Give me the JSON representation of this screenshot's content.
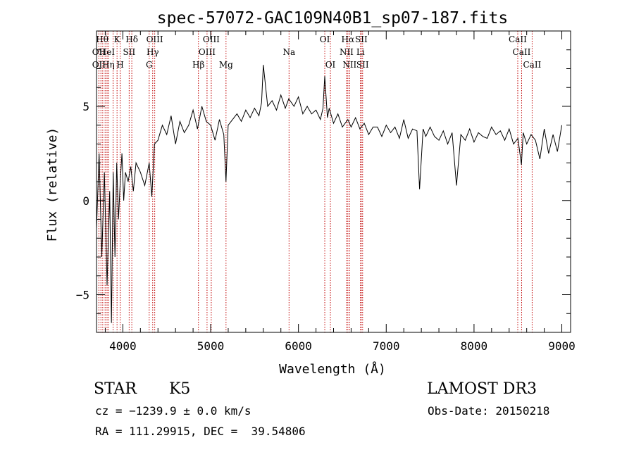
{
  "chart_data": {
    "type": "line",
    "title": "spec-57072-GAC109N40B1_sp07-187.fits",
    "xlabel": "Wavelength (Å)",
    "ylabel": "Flux (relative)",
    "xlim": [
      3700,
      9100
    ],
    "ylim": [
      -7,
      9
    ],
    "x_ticks": [
      4000,
      5000,
      6000,
      7000,
      8000,
      9000
    ],
    "y_ticks": [
      -5,
      0,
      5
    ],
    "x_tick_labels": [
      "4000",
      "5000",
      "6000",
      "7000",
      "8000",
      "9000"
    ],
    "y_tick_labels": [
      "−5",
      "0",
      "5"
    ],
    "grid": false,
    "series": [
      {
        "color": "#000000",
        "x": [
          3700,
          3730,
          3760,
          3790,
          3820,
          3850,
          3870,
          3890,
          3910,
          3930,
          3950,
          3970,
          3990,
          4010,
          4030,
          4060,
          4090,
          4120,
          4150,
          4200,
          4250,
          4300,
          4330,
          4360,
          4400,
          4450,
          4500,
          4550,
          4600,
          4650,
          4700,
          4750,
          4800,
          4850,
          4900,
          4950,
          5000,
          5050,
          5100,
          5150,
          5175,
          5200,
          5250,
          5300,
          5350,
          5400,
          5450,
          5500,
          5550,
          5580,
          5600,
          5650,
          5700,
          5750,
          5800,
          5850,
          5890,
          5950,
          6000,
          6050,
          6100,
          6150,
          6200,
          6250,
          6280,
          6300,
          6330,
          6350,
          6400,
          6450,
          6500,
          6563,
          6600,
          6650,
          6700,
          6750,
          6800,
          6850,
          6900,
          6950,
          7000,
          7050,
          7100,
          7150,
          7200,
          7250,
          7300,
          7350,
          7380,
          7420,
          7450,
          7500,
          7550,
          7600,
          7650,
          7700,
          7750,
          7800,
          7850,
          7900,
          7950,
          8000,
          8050,
          8100,
          8150,
          8200,
          8250,
          8300,
          8350,
          8400,
          8450,
          8500,
          8540,
          8560,
          8600,
          8650,
          8700,
          8750,
          8800,
          8850,
          8900,
          8950,
          9000
        ],
        "y": [
          -1.5,
          2.5,
          -3.0,
          1.5,
          -4.5,
          0.5,
          -6.5,
          1.5,
          -3.0,
          2.0,
          -1.0,
          1.0,
          2.5,
          0.0,
          1.5,
          1.0,
          1.8,
          0.5,
          2.0,
          1.5,
          0.8,
          2.0,
          0.2,
          3.0,
          3.2,
          4.0,
          3.5,
          4.5,
          3.0,
          4.2,
          3.6,
          4.0,
          4.8,
          3.8,
          5.0,
          4.2,
          4.0,
          3.2,
          4.3,
          3.5,
          1.0,
          4.0,
          4.3,
          4.6,
          4.2,
          4.8,
          4.4,
          4.9,
          4.5,
          5.2,
          7.2,
          5.0,
          5.3,
          4.8,
          5.6,
          4.9,
          5.4,
          5.0,
          5.5,
          4.6,
          5.0,
          4.6,
          4.8,
          4.3,
          4.9,
          6.6,
          4.4,
          4.9,
          4.1,
          4.6,
          3.9,
          4.3,
          3.9,
          4.4,
          3.8,
          4.1,
          3.5,
          3.9,
          3.9,
          3.4,
          4.0,
          3.6,
          3.9,
          3.3,
          4.3,
          3.3,
          3.8,
          3.7,
          0.6,
          3.8,
          3.4,
          3.9,
          3.4,
          3.2,
          3.7,
          3.0,
          3.6,
          0.8,
          3.5,
          3.2,
          3.8,
          3.1,
          3.6,
          3.4,
          3.3,
          3.9,
          3.5,
          3.7,
          3.2,
          3.8,
          3.0,
          3.3,
          1.9,
          3.6,
          3.0,
          3.5,
          3.2,
          2.2,
          3.8,
          2.5,
          3.5,
          2.6,
          4.0
        ]
      }
    ],
    "lines": {
      "wavelengths": [
        3727,
        3750,
        3771,
        3798,
        3820,
        3835,
        3889,
        3934,
        3970,
        4072,
        4102,
        4300,
        4340,
        4363,
        4861,
        4959,
        5007,
        5175,
        5893,
        6300,
        6364,
        6548,
        6563,
        6583,
        6707,
        6716,
        6731,
        8498,
        8542,
        8662
      ],
      "labels": [
        {
          "text": "Hθ",
          "wl": 3765,
          "row": 1
        },
        {
          "text": "K",
          "wl": 3934,
          "row": 1
        },
        {
          "text": "Hδ",
          "wl": 4102,
          "row": 1
        },
        {
          "text": "OIII",
          "wl": 4363,
          "row": 1
        },
        {
          "text": "OIII",
          "wl": 5007,
          "row": 1
        },
        {
          "text": "OI",
          "wl": 6300,
          "row": 1
        },
        {
          "text": "Hα",
          "wl": 6563,
          "row": 1
        },
        {
          "text": "SII",
          "wl": 6716,
          "row": 1
        },
        {
          "text": "CaII",
          "wl": 8498,
          "row": 1
        },
        {
          "text": "OII",
          "wl": 3727,
          "row": 2
        },
        {
          "text": "HeI",
          "wl": 3820,
          "row": 2
        },
        {
          "text": "SII",
          "wl": 4072,
          "row": 2
        },
        {
          "text": "Hγ",
          "wl": 4340,
          "row": 2
        },
        {
          "text": "OIII",
          "wl": 4959,
          "row": 2
        },
        {
          "text": "Na",
          "wl": 5893,
          "row": 2
        },
        {
          "text": "NII",
          "wl": 6548,
          "row": 2
        },
        {
          "text": "Li",
          "wl": 6707,
          "row": 2
        },
        {
          "text": "CaII",
          "wl": 8542,
          "row": 2
        },
        {
          "text": "OII",
          "wl": 3727,
          "row": 3
        },
        {
          "text": "Hη",
          "wl": 3835,
          "row": 3
        },
        {
          "text": "H",
          "wl": 3970,
          "row": 3
        },
        {
          "text": "G",
          "wl": 4300,
          "row": 3
        },
        {
          "text": "Hβ",
          "wl": 4861,
          "row": 3
        },
        {
          "text": "Mg",
          "wl": 5175,
          "row": 3
        },
        {
          "text": "OI",
          "wl": 6364,
          "row": 3
        },
        {
          "text": "NII",
          "wl": 6583,
          "row": 3
        },
        {
          "text": "SII",
          "wl": 6731,
          "row": 3
        },
        {
          "text": "CaII",
          "wl": 8662,
          "row": 3
        }
      ]
    }
  },
  "info": {
    "class": "STAR",
    "subclass": "K5",
    "survey": "LAMOST DR3",
    "cz": "cz = −1239.9 ± 0.0 km/s",
    "obs_date": "Obs-Date: 20150218",
    "coords": "RA = 111.29915, DEC =  39.54806"
  },
  "colors": {
    "spectrum": "#000000",
    "line_marker": "#c00000",
    "axes": "#000000",
    "background": "#ffffff"
  }
}
